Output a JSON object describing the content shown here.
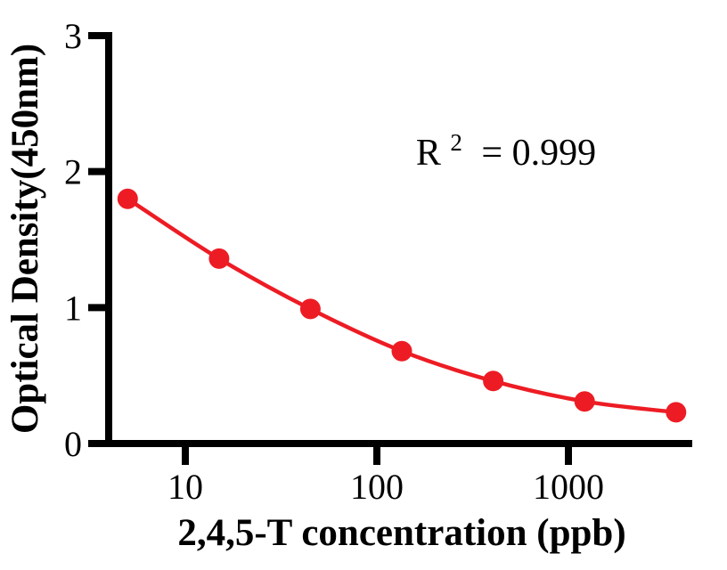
{
  "chart_data": {
    "type": "line",
    "x_scale": "log",
    "x": [
      5,
      15,
      45,
      135,
      405,
      1215,
      3645
    ],
    "y": [
      1.8,
      1.36,
      0.99,
      0.68,
      0.46,
      0.31,
      0.23
    ],
    "xlabel": "2,4,5-T concentration (ppb)",
    "ylabel": "Optical Density(450nm)",
    "x_ticks": {
      "values": [
        10,
        100,
        1000
      ],
      "labels": [
        "10",
        "100",
        "1000"
      ]
    },
    "y_ticks": {
      "values": [
        0,
        1,
        2,
        3
      ],
      "labels": [
        "0",
        "1",
        "2",
        "3"
      ]
    },
    "ylim": [
      0,
      3
    ],
    "xlim": [
      3.2,
      4600
    ],
    "grid": false,
    "legend": false,
    "marker": "circle",
    "annotation": {
      "text": "R² = 0.999",
      "base": "R",
      "exponent": "2",
      "value": "= 0.999"
    },
    "colors": {
      "marker": "#ED1C24",
      "line": "#ED1C24",
      "axis": "#000000",
      "text": "#000000",
      "background": "#FFFFFF"
    }
  }
}
